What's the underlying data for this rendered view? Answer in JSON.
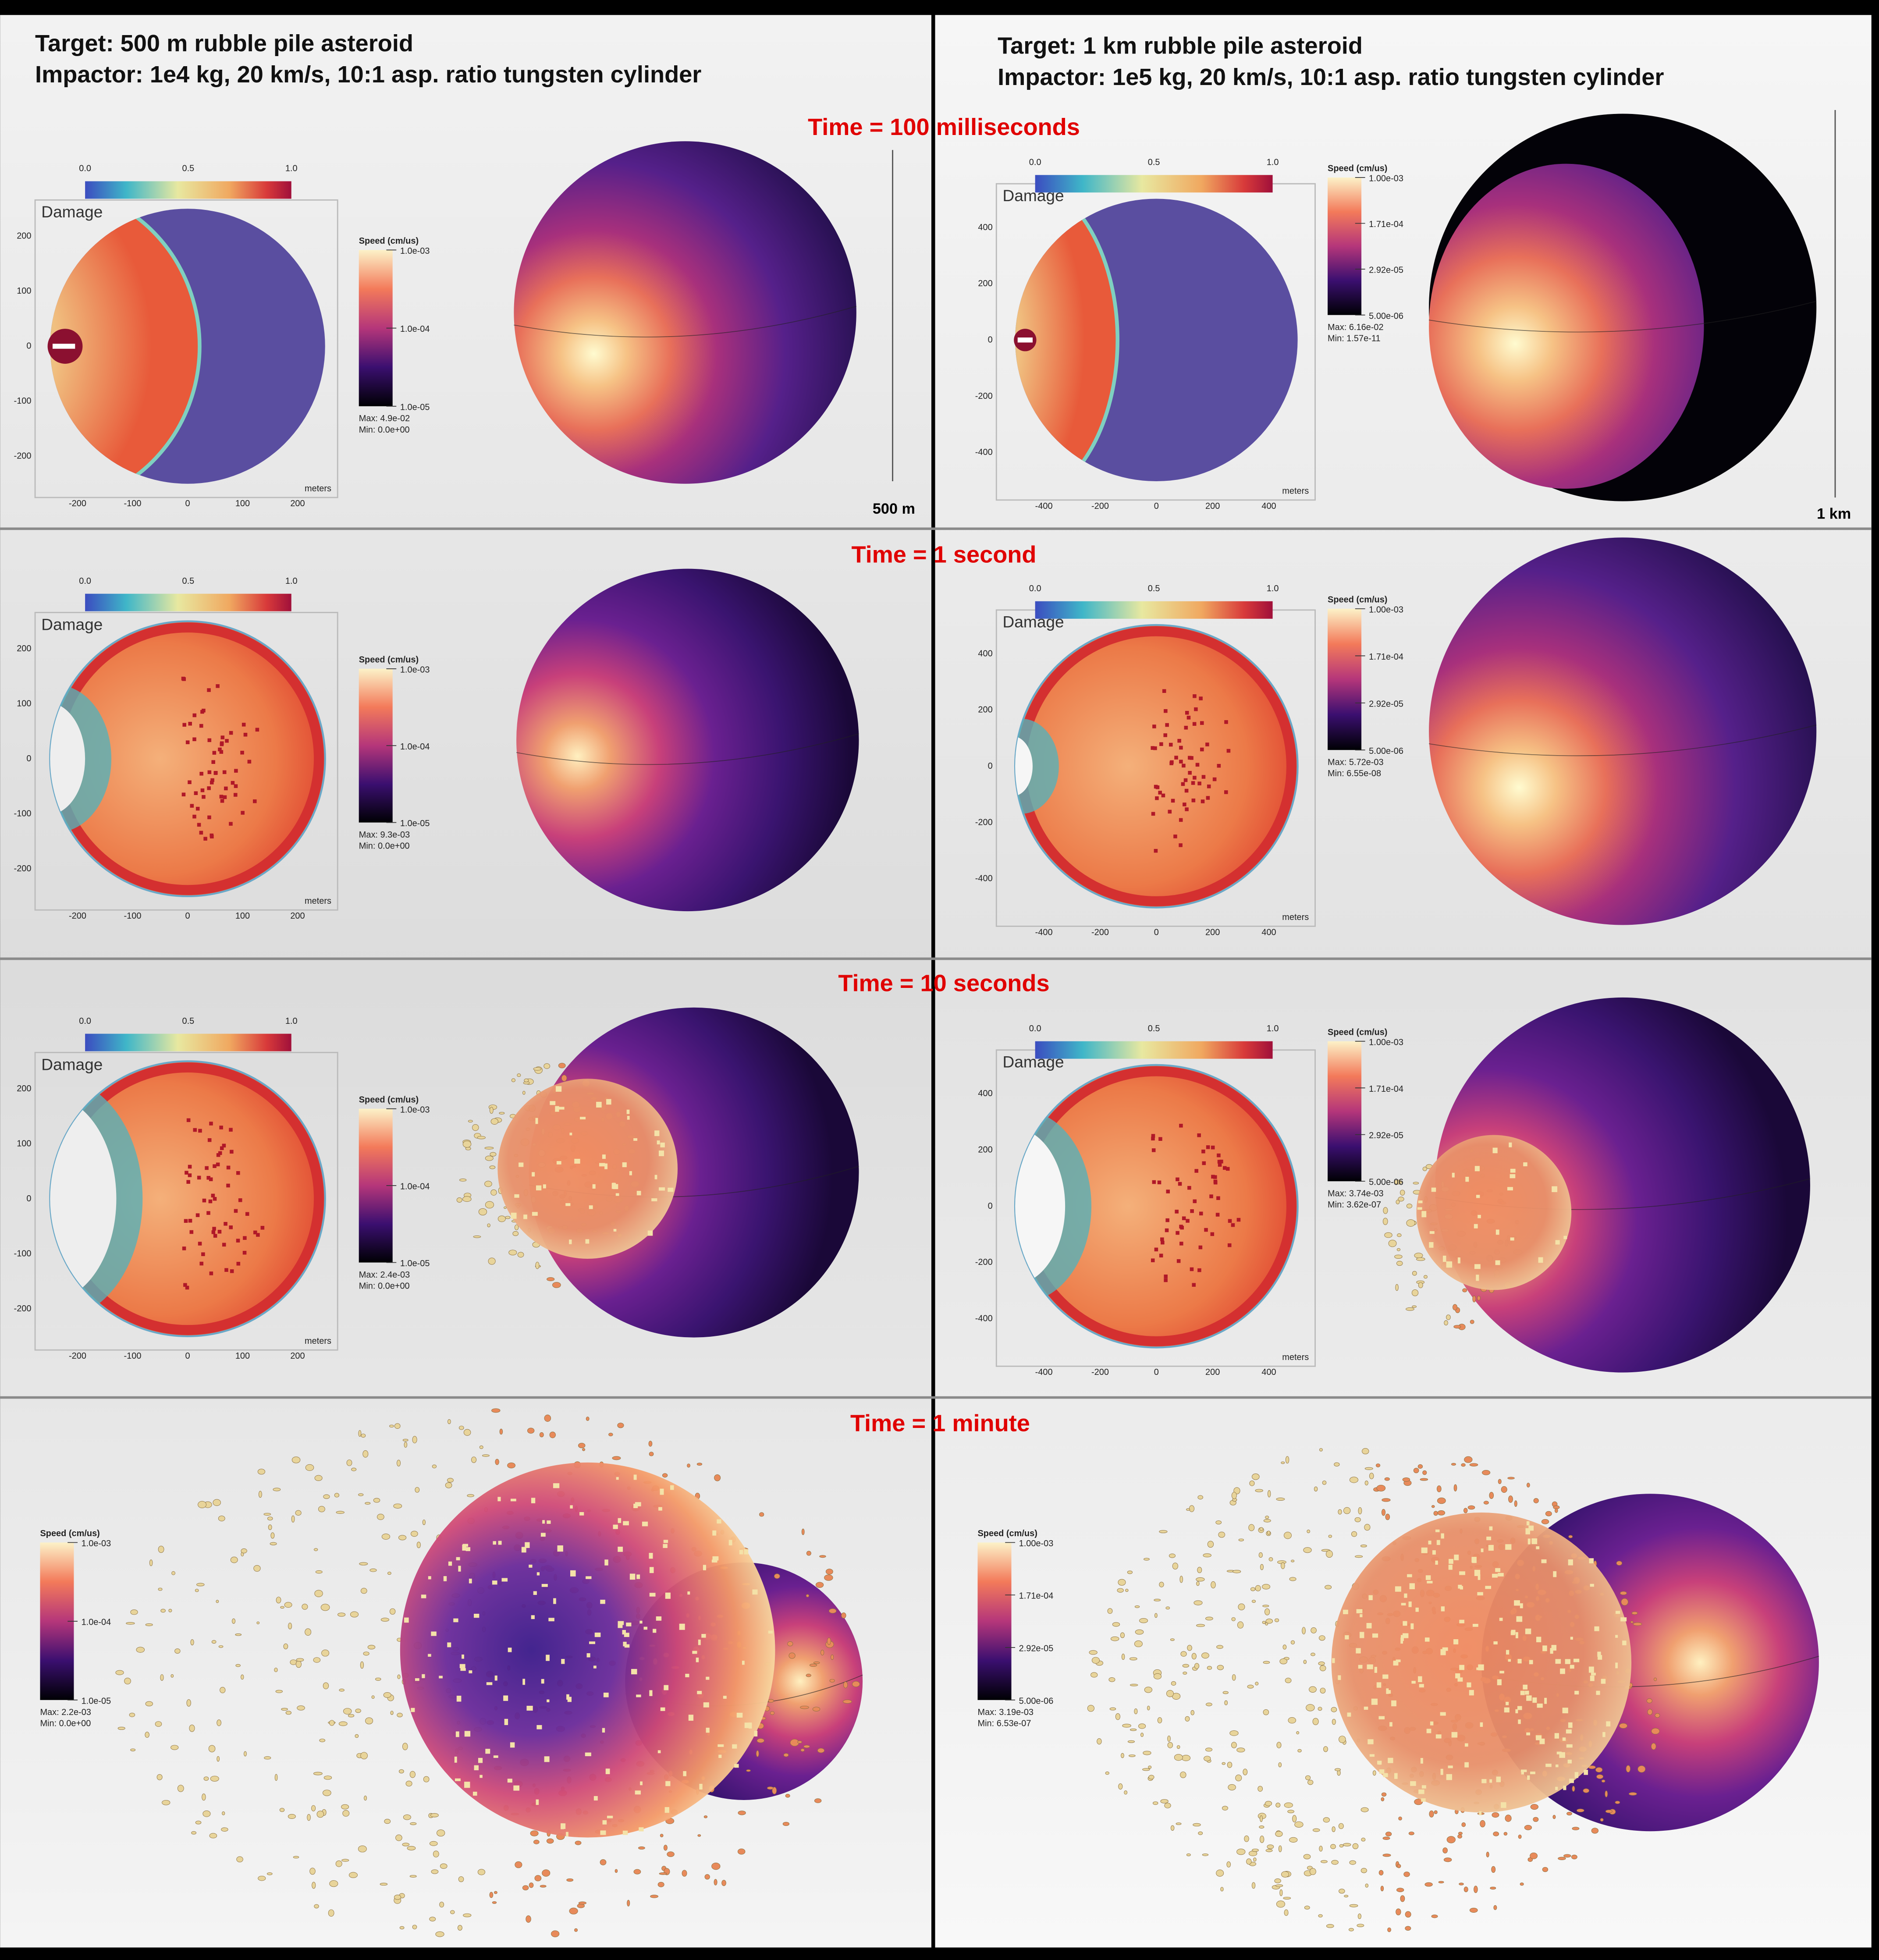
{
  "columns": [
    {
      "target": "Target: 500 m rubble pile asteroid",
      "impactor": "Impactor: 1e4 kg, 20 km/s, 10:1 asp. ratio tungsten cylinder",
      "scale_bar": "500 m",
      "damage_label": "Damage",
      "damage_ticks": [
        "0.0",
        "0.5",
        "1.0"
      ],
      "x_ticks": [
        "-200",
        "-100",
        "0",
        "100",
        "200"
      ],
      "y_ticks": [
        "200",
        "100",
        "0",
        "-100",
        "-200"
      ],
      "axis_unit": "meters",
      "speed_label": "Speed (cm/us)",
      "speed_ticks": [
        "1.0e-03",
        "1.0e-04",
        "1.0e-05"
      ],
      "panels": [
        {
          "max": "Max: 4.9e-02",
          "min": "Min: 0.0e+00"
        },
        {
          "max": "Max: 9.3e-03",
          "min": "Min: 0.0e+00"
        },
        {
          "max": "Max: 2.4e-03",
          "min": "Min: 0.0e+00"
        },
        {
          "max": "Max: 2.2e-03",
          "min": "Min: 0.0e+00"
        }
      ]
    },
    {
      "target": "Target: 1 km rubble pile asteroid",
      "impactor": "Impactor: 1e5 kg, 20 km/s, 10:1 asp. ratio tungsten cylinder",
      "scale_bar": "1 km",
      "damage_label": "Damage",
      "damage_ticks": [
        "0.0",
        "0.5",
        "1.0"
      ],
      "x_ticks": [
        "-400",
        "-200",
        "0",
        "200",
        "400"
      ],
      "y_ticks": [
        "400",
        "200",
        "0",
        "-200",
        "-400"
      ],
      "axis_unit": "meters",
      "speed_label": "Speed (cm/us)",
      "speed_ticks": [
        "1.00e-03",
        "1.71e-04",
        "2.92e-05",
        "5.00e-06"
      ],
      "panels": [
        {
          "max": "Max: 6.16e-02",
          "min": "Min: 1.57e-11"
        },
        {
          "max": "Max: 5.72e-03",
          "min": "Min: 6.55e-08"
        },
        {
          "max": "Max: 3.74e-03",
          "min": "Min: 3.62e-07"
        },
        {
          "max": "Max: 3.19e-03",
          "min": "Min: 6.53e-07"
        }
      ]
    }
  ],
  "times": [
    "Time = 100 milliseconds",
    "Time = 1 second",
    "Time = 10 seconds",
    "Time = 1 minute"
  ]
}
